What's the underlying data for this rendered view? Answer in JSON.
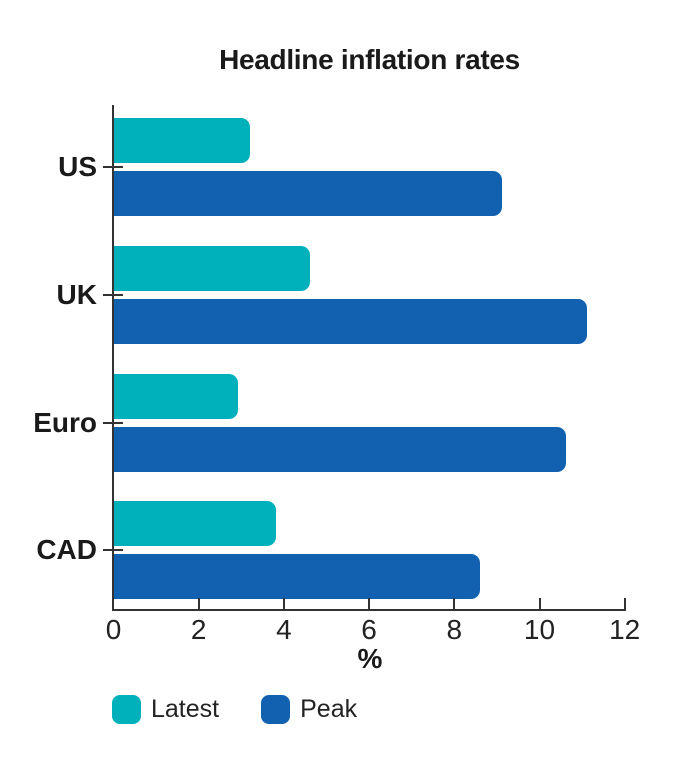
{
  "chart_data": {
    "type": "bar",
    "orientation": "horizontal",
    "title": "Headline inflation rates",
    "xlabel": "%",
    "categories": [
      "US",
      "UK",
      "Euro",
      "CAD"
    ],
    "series": [
      {
        "name": "Latest",
        "color": "#00B0BB",
        "values": [
          3.2,
          4.6,
          2.9,
          3.8
        ]
      },
      {
        "name": "Peak",
        "color": "#1261B1",
        "values": [
          9.1,
          11.1,
          10.6,
          8.6
        ]
      }
    ],
    "xlim": [
      0,
      12
    ],
    "xticks": [
      0,
      2,
      4,
      6,
      8,
      10,
      12
    ],
    "grid": false,
    "legend_position": "bottom-left"
  },
  "colors": {
    "latest": "#00B0BB",
    "peak": "#1261B1",
    "axis": "#333333",
    "text": "#1a1a1a"
  }
}
